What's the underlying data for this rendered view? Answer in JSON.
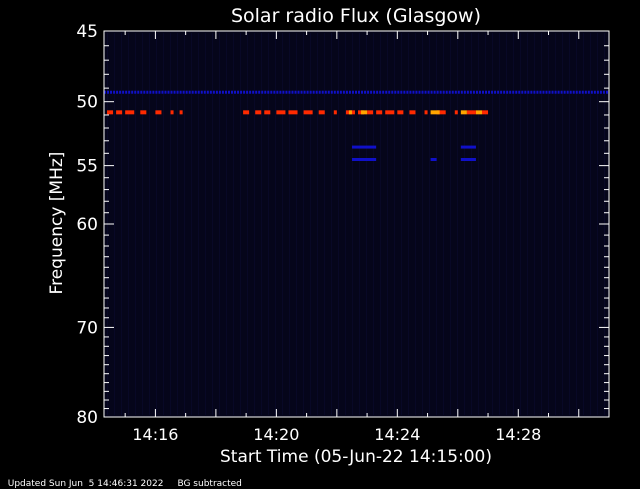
{
  "chart_data": {
    "type": "heatmap",
    "title": "Solar radio Flux (Glasgow)",
    "xlabel": "Start Time (05-Jun-22 14:15:00)",
    "ylabel": "Frequency [MHz]",
    "xlim_minutes": [
      14.3,
      31.0
    ],
    "ylim_mhz": [
      45,
      80
    ],
    "x_tick_labels": [
      {
        "minute": 16,
        "label": "14:16"
      },
      {
        "minute": 20,
        "label": "14:20"
      },
      {
        "minute": 24,
        "label": "14:24"
      },
      {
        "minute": 28,
        "label": "14:28"
      }
    ],
    "y_tick_labels": [
      {
        "mhz": 45,
        "label": "45"
      },
      {
        "mhz": 50,
        "label": "50"
      },
      {
        "mhz": 55,
        "label": "55"
      },
      {
        "mhz": 60,
        "label": "60"
      },
      {
        "mhz": 70,
        "label": "70"
      },
      {
        "mhz": 80,
        "label": "80"
      }
    ],
    "colors": {
      "background": "#05051a",
      "low": "#1010c8",
      "mid": "#ff2a00",
      "high": "#ffa500"
    },
    "bands": [
      {
        "mhz": 49.3,
        "level": "low",
        "x_start": 14.3,
        "x_end": 31.0,
        "pattern": "dashed"
      },
      {
        "mhz": 50.8,
        "level": "mid",
        "segments": [
          [
            14.4,
            14.6
          ],
          [
            14.7,
            14.9
          ],
          [
            15.0,
            15.3
          ],
          [
            15.5,
            15.7
          ],
          [
            16.0,
            16.2
          ],
          [
            16.5,
            16.6
          ],
          [
            16.8,
            16.9
          ],
          [
            18.9,
            19.1
          ],
          [
            19.3,
            19.5
          ],
          [
            19.6,
            19.8
          ],
          [
            20.0,
            20.3
          ],
          [
            20.4,
            20.7
          ],
          [
            20.9,
            21.2
          ],
          [
            21.4,
            21.6
          ],
          [
            21.9,
            22.0
          ],
          [
            22.3,
            22.6
          ],
          [
            22.7,
            22.9
          ],
          [
            23.0,
            23.2
          ],
          [
            23.3,
            23.5
          ],
          [
            23.6,
            23.9
          ],
          [
            24.0,
            24.2
          ],
          [
            24.4,
            24.6
          ],
          [
            24.9,
            25.0
          ],
          [
            25.3,
            25.6
          ],
          [
            25.9,
            26.0
          ],
          [
            26.3,
            26.6
          ],
          [
            26.8,
            27.0
          ]
        ]
      },
      {
        "mhz": 50.8,
        "level": "high",
        "segments": [
          [
            22.4,
            22.5
          ],
          [
            22.8,
            23.0
          ],
          [
            25.1,
            25.4
          ],
          [
            26.1,
            26.3
          ],
          [
            26.6,
            26.8
          ]
        ]
      },
      {
        "mhz": 53.5,
        "level": "low",
        "segments": [
          [
            22.5,
            23.3
          ],
          [
            26.1,
            26.6
          ]
        ]
      },
      {
        "mhz": 54.5,
        "level": "low",
        "segments": [
          [
            22.5,
            23.3
          ],
          [
            25.1,
            25.3
          ],
          [
            26.1,
            26.6
          ]
        ]
      }
    ]
  },
  "footer": {
    "updated": "Updated Sun Jun  5 14:46:31 2022",
    "note": "BG subtracted"
  }
}
